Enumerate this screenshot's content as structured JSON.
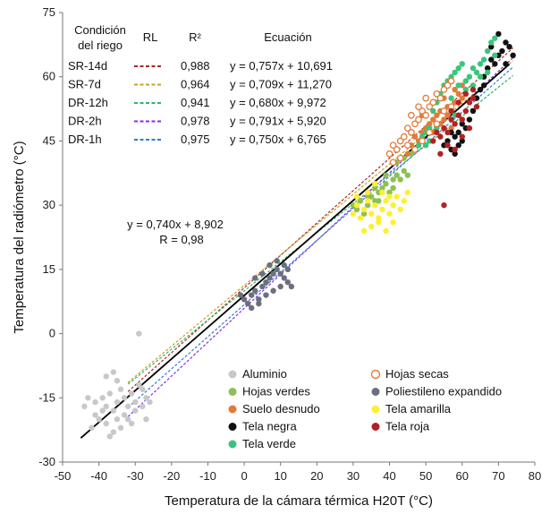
{
  "chart_data": {
    "type": "scatter",
    "xlabel": "Temperatura de la cámara térmica H20T (°C)",
    "ylabel": "Temperatura del radiómetro (°C)",
    "xlim": [
      -50,
      80
    ],
    "ylim": [
      -30,
      75
    ],
    "xticks": [
      -50,
      -40,
      -30,
      -20,
      -10,
      0,
      10,
      20,
      30,
      40,
      50,
      60,
      70,
      80
    ],
    "yticks": [
      -30,
      -15,
      0,
      15,
      30,
      45,
      60,
      75
    ],
    "table": {
      "headers": [
        "Condición del riego",
        "RL",
        "R²",
        "Ecuación"
      ],
      "header_line1": "Condición",
      "header_line2": "del riego",
      "rows": [
        {
          "condition": "SR-14d",
          "color": "#a52a2a",
          "r2": "0,988",
          "equation": "y = 0,757x + 10,691",
          "slope": 0.757,
          "intercept": 10.691
        },
        {
          "condition": "SR-7d",
          "color": "#c8a020",
          "r2": "0,964",
          "equation": "y = 0,709x + 11,270",
          "slope": 0.709,
          "intercept": 11.27
        },
        {
          "condition": "DR-12h",
          "color": "#2fb36b",
          "r2": "0,941",
          "equation": "y = 0,680x + 9,972",
          "slope": 0.68,
          "intercept": 9.972
        },
        {
          "condition": "DR-2h",
          "color": "#8a2be2",
          "r2": "0,978",
          "equation": "y = 0,791x + 5,920",
          "slope": 0.791,
          "intercept": 5.92
        },
        {
          "condition": "DR-1h",
          "color": "#2e7fd1",
          "r2": "0,975",
          "equation": "y = 0,750x + 6,765",
          "slope": 0.75,
          "intercept": 6.765
        }
      ]
    },
    "overall_fit": {
      "equation": "y = 0,740x + 8,902",
      "r_text": "R = 0,98",
      "slope": 0.74,
      "intercept": 8.902,
      "x_range": [
        -45,
        73
      ]
    },
    "series": [
      {
        "name": "Aluminio",
        "color": "#c8c8c8",
        "marker": "filled",
        "points": [
          [
            -43,
            -15
          ],
          [
            -41,
            -16
          ],
          [
            -39,
            -15
          ],
          [
            -38,
            -17
          ],
          [
            -37,
            -14
          ],
          [
            -36,
            -18
          ],
          [
            -35,
            -16
          ],
          [
            -34,
            -13
          ],
          [
            -33,
            -15
          ],
          [
            -32,
            -17
          ],
          [
            -31,
            -14
          ],
          [
            -30,
            -16
          ],
          [
            -29,
            -12
          ],
          [
            -28,
            -13
          ],
          [
            -27,
            -15
          ],
          [
            -26,
            -16
          ],
          [
            -40,
            -20
          ],
          [
            -42,
            -22
          ],
          [
            -38,
            -21
          ],
          [
            -35,
            -20
          ],
          [
            -33,
            -19
          ],
          [
            -36,
            -23
          ],
          [
            -39,
            -18
          ],
          [
            -41,
            -19
          ],
          [
            -37,
            -24
          ],
          [
            -30,
            -18
          ],
          [
            -31,
            -21
          ],
          [
            -34,
            -22
          ],
          [
            -28,
            -17
          ],
          [
            -32,
            -20
          ],
          [
            -29,
            0
          ],
          [
            -38,
            -10
          ],
          [
            -35,
            -11
          ],
          [
            -36,
            -9
          ],
          [
            -44,
            -17
          ],
          [
            -27,
            -20
          ]
        ]
      },
      {
        "name": "Hojas verdes",
        "color": "#8cc152",
        "marker": "filled",
        "points": [
          [
            30,
            30
          ],
          [
            31,
            29
          ],
          [
            32,
            31
          ],
          [
            33,
            28
          ],
          [
            34,
            30
          ],
          [
            35,
            32
          ],
          [
            36,
            31
          ],
          [
            37,
            33
          ],
          [
            38,
            34
          ],
          [
            39,
            35
          ],
          [
            40,
            33
          ],
          [
            41,
            36
          ],
          [
            42,
            37
          ],
          [
            43,
            36
          ],
          [
            44,
            38
          ],
          [
            45,
            37
          ],
          [
            36,
            34
          ],
          [
            39,
            37
          ],
          [
            42,
            40
          ],
          [
            44,
            41
          ],
          [
            46,
            42
          ],
          [
            34,
            32
          ],
          [
            37,
            31
          ],
          [
            41,
            34
          ]
        ]
      },
      {
        "name": "Suelo desnudo",
        "color": "#e07b39",
        "marker": "filled",
        "points": [
          [
            45,
            42
          ],
          [
            46,
            44
          ],
          [
            47,
            46
          ],
          [
            48,
            45
          ],
          [
            49,
            47
          ],
          [
            50,
            48
          ],
          [
            51,
            49
          ],
          [
            52,
            50
          ],
          [
            53,
            51
          ],
          [
            54,
            52
          ],
          [
            55,
            50
          ],
          [
            56,
            53
          ],
          [
            57,
            52
          ],
          [
            58,
            54
          ],
          [
            59,
            56
          ],
          [
            60,
            55
          ],
          [
            52,
            47
          ],
          [
            54,
            49
          ],
          [
            56,
            51
          ],
          [
            58,
            57
          ],
          [
            60,
            58
          ],
          [
            57,
            48
          ],
          [
            55,
            55
          ],
          [
            51,
            53
          ],
          [
            49,
            51
          ],
          [
            48,
            50
          ]
        ]
      },
      {
        "name": "Tela negra",
        "color": "#111111",
        "marker": "filled",
        "points": [
          [
            55,
            44
          ],
          [
            56,
            45
          ],
          [
            57,
            43
          ],
          [
            58,
            46
          ],
          [
            59,
            47
          ],
          [
            60,
            45
          ],
          [
            61,
            48
          ],
          [
            58,
            42
          ],
          [
            59,
            44
          ],
          [
            62,
            50
          ],
          [
            64,
            55
          ],
          [
            65,
            57
          ],
          [
            66,
            58
          ],
          [
            67,
            62
          ],
          [
            68,
            64
          ],
          [
            69,
            63
          ],
          [
            70,
            65
          ],
          [
            71,
            66
          ],
          [
            72,
            68
          ],
          [
            73,
            67
          ],
          [
            74,
            65
          ],
          [
            70,
            70
          ],
          [
            68,
            67
          ],
          [
            72,
            63
          ],
          [
            66,
            60
          ],
          [
            63,
            52
          ],
          [
            60,
            49
          ],
          [
            57,
            47
          ]
        ]
      },
      {
        "name": "Tela verde",
        "color": "#3cc47c",
        "marker": "filled",
        "points": [
          [
            48,
            44
          ],
          [
            49,
            46
          ],
          [
            50,
            47
          ],
          [
            51,
            48
          ],
          [
            52,
            52
          ],
          [
            53,
            54
          ],
          [
            54,
            56
          ],
          [
            55,
            58
          ],
          [
            56,
            59
          ],
          [
            57,
            60
          ],
          [
            58,
            61
          ],
          [
            59,
            62
          ],
          [
            60,
            63
          ],
          [
            61,
            59
          ],
          [
            62,
            60
          ],
          [
            63,
            62
          ],
          [
            64,
            61
          ],
          [
            65,
            63
          ],
          [
            66,
            64
          ],
          [
            67,
            66
          ],
          [
            68,
            68
          ],
          [
            69,
            69
          ],
          [
            55,
            52
          ],
          [
            57,
            55
          ],
          [
            59,
            58
          ],
          [
            61,
            57
          ],
          [
            63,
            58
          ],
          [
            65,
            60
          ],
          [
            67,
            61
          ],
          [
            69,
            65
          ],
          [
            53,
            48
          ],
          [
            51,
            45
          ],
          [
            50,
            44
          ],
          [
            58,
            51
          ],
          [
            60,
            50
          ]
        ]
      },
      {
        "name": "Hojas secas",
        "color": "#e07b39",
        "marker": "hollow",
        "points": [
          [
            40,
            42
          ],
          [
            41,
            44
          ],
          [
            42,
            43
          ],
          [
            43,
            45
          ],
          [
            44,
            46
          ],
          [
            45,
            48
          ],
          [
            46,
            47
          ],
          [
            47,
            49
          ],
          [
            48,
            50
          ],
          [
            49,
            52
          ],
          [
            50,
            51
          ],
          [
            51,
            53
          ],
          [
            52,
            54
          ],
          [
            53,
            56
          ],
          [
            54,
            55
          ],
          [
            55,
            57
          ],
          [
            56,
            58
          ],
          [
            57,
            59
          ],
          [
            45,
            44
          ],
          [
            47,
            43
          ],
          [
            49,
            45
          ],
          [
            51,
            47
          ],
          [
            53,
            49
          ],
          [
            55,
            52
          ],
          [
            57,
            53
          ],
          [
            43,
            41
          ],
          [
            41,
            40
          ],
          [
            46,
            51
          ],
          [
            48,
            53
          ],
          [
            50,
            55
          ]
        ]
      },
      {
        "name": "Poliestileno expandido",
        "color": "#6b6f80",
        "marker": "filled",
        "points": [
          [
            0,
            8
          ],
          [
            1,
            7
          ],
          [
            2,
            9
          ],
          [
            3,
            10
          ],
          [
            4,
            8
          ],
          [
            5,
            11
          ],
          [
            6,
            12
          ],
          [
            7,
            13
          ],
          [
            8,
            14
          ],
          [
            9,
            15
          ],
          [
            10,
            14
          ],
          [
            11,
            13
          ],
          [
            12,
            12
          ],
          [
            13,
            11
          ],
          [
            -1,
            9
          ],
          [
            3,
            13
          ],
          [
            5,
            14
          ],
          [
            7,
            16
          ],
          [
            9,
            17
          ],
          [
            11,
            16
          ],
          [
            6,
            9
          ],
          [
            8,
            10
          ],
          [
            10,
            11
          ],
          [
            2,
            6
          ],
          [
            4,
            7
          ],
          [
            12,
            15
          ]
        ]
      },
      {
        "name": "Tela amarilla",
        "color": "#ffef33",
        "marker": "filled",
        "points": [
          [
            30,
            28
          ],
          [
            31,
            30
          ],
          [
            32,
            27
          ],
          [
            33,
            29
          ],
          [
            34,
            31
          ],
          [
            35,
            28
          ],
          [
            36,
            30
          ],
          [
            37,
            27
          ],
          [
            38,
            29
          ],
          [
            39,
            31
          ],
          [
            40,
            28
          ],
          [
            41,
            30
          ],
          [
            42,
            32
          ],
          [
            43,
            29
          ],
          [
            44,
            31
          ],
          [
            45,
            33
          ],
          [
            33,
            24
          ],
          [
            35,
            25
          ],
          [
            37,
            26
          ],
          [
            39,
            24
          ],
          [
            41,
            26
          ],
          [
            31,
            32
          ],
          [
            34,
            33
          ],
          [
            36,
            35
          ],
          [
            38,
            33
          ],
          [
            40,
            32
          ]
        ]
      },
      {
        "name": "Tela roja",
        "color": "#b22222",
        "marker": "filled",
        "points": [
          [
            52,
            45
          ],
          [
            53,
            47
          ],
          [
            54,
            46
          ],
          [
            55,
            48
          ],
          [
            56,
            47
          ],
          [
            57,
            50
          ],
          [
            58,
            49
          ],
          [
            59,
            51
          ],
          [
            60,
            50
          ],
          [
            61,
            52
          ],
          [
            62,
            54
          ],
          [
            63,
            55
          ],
          [
            64,
            53
          ],
          [
            54,
            42
          ],
          [
            56,
            44
          ],
          [
            58,
            43
          ],
          [
            60,
            46
          ],
          [
            62,
            48
          ],
          [
            55,
            30
          ],
          [
            57,
            52
          ],
          [
            59,
            54
          ],
          [
            61,
            56
          ],
          [
            63,
            57
          ]
        ]
      }
    ],
    "legend": {
      "left": [
        "Aluminio",
        "Hojas verdes",
        "Suelo desnudo",
        "Tela negra",
        "Tela verde"
      ],
      "right": [
        "Hojas secas",
        "Poliestileno expandido",
        "Tela amarilla",
        "Tela roja"
      ]
    }
  }
}
